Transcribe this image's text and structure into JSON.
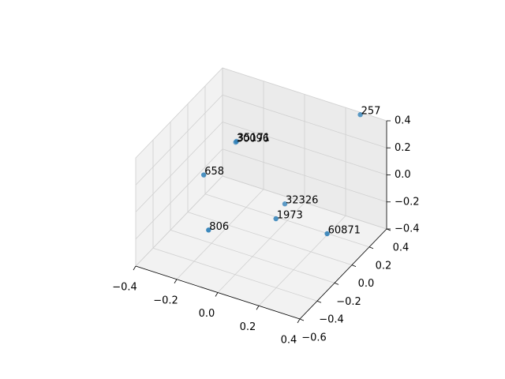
{
  "chart_data": {
    "type": "scatter3d",
    "x": [
      0.28,
      -0.23,
      -0.23,
      -0.28,
      -0.02,
      0.0,
      -0.21,
      0.22
    ],
    "y": [
      0.38,
      0.16,
      0.15,
      -0.1,
      0.22,
      0.07,
      -0.21,
      0.14
    ],
    "z": [
      0.4,
      0.1,
      0.1,
      0.0,
      -0.3,
      -0.3,
      -0.3,
      -0.35
    ],
    "labels": [
      "257",
      "35171",
      "30096",
      "658",
      "32326",
      "1973",
      "806",
      "60871"
    ],
    "color": "#1f77b4",
    "xlim": [
      -0.4,
      0.4
    ],
    "ylim": [
      -0.6,
      0.4
    ],
    "zlim": [
      -0.4,
      0.4
    ],
    "xticks": [
      {
        "value": -0.4,
        "label": "−0.4"
      },
      {
        "value": -0.2,
        "label": "−0.2"
      },
      {
        "value": 0,
        "label": "0.0"
      },
      0.2,
      0.4
    ],
    "yticks": [
      {
        "value": -0.6,
        "label": "−0.6"
      },
      {
        "value": -0.4,
        "label": "−0.4"
      },
      {
        "value": -0.2,
        "label": "−0.2"
      },
      {
        "value": 0,
        "label": "0.0"
      },
      0.2,
      0.4
    ],
    "zticks": [
      {
        "value": -0.4,
        "label": "−0.4"
      },
      {
        "value": -0.2,
        "label": "−0.2"
      },
      {
        "value": 0,
        "label": "0.0"
      },
      0.2,
      0.4
    ],
    "grid": true
  }
}
